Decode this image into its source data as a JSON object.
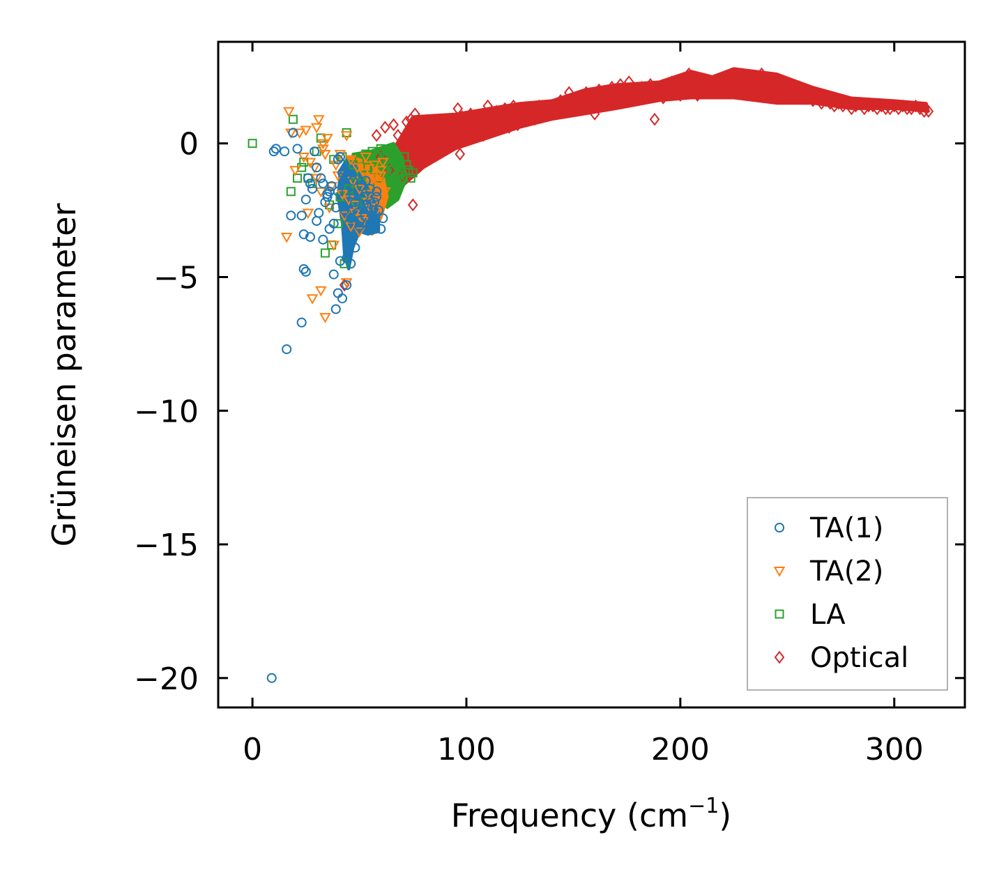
{
  "chart_data": {
    "type": "scatter",
    "title": "",
    "xlabel": "Frequency (cm",
    "xlabel_sup": "−1",
    "xlabel_close": ")",
    "ylabel": "Grüneisen parameter",
    "xlim": [
      -16,
      333
    ],
    "ylim": [
      -21.1,
      3.8
    ],
    "xticks": [
      0,
      100,
      200,
      300
    ],
    "xtick_labels": [
      "0",
      "100",
      "200",
      "300"
    ],
    "yticks": [
      0,
      -5,
      -10,
      -15,
      -20
    ],
    "ytick_labels": [
      "0",
      "−5",
      "−10",
      "−15",
      "−20"
    ],
    "grid": false,
    "legend_position": "bottom-right",
    "series": [
      {
        "name": "TA(1)",
        "marker": "circle",
        "color": "#1f77b4",
        "x": [
          9,
          10,
          11,
          16,
          18,
          19,
          21,
          23,
          24,
          25,
          26,
          27,
          28,
          29,
          30,
          31,
          32,
          33,
          34,
          35,
          36,
          37,
          38,
          39,
          40,
          41,
          42,
          43,
          44,
          45,
          46,
          47,
          48,
          49,
          50,
          51,
          52,
          53,
          54,
          55,
          56,
          57,
          58,
          59,
          60,
          24,
          25,
          27,
          30,
          33,
          36,
          38,
          40,
          43,
          45,
          47,
          50,
          52,
          55,
          58,
          61,
          40,
          42,
          44,
          46,
          48,
          15,
          23,
          39,
          35,
          41
        ],
        "y": [
          -20,
          -0.3,
          -0.2,
          -7.7,
          -2.7,
          0.4,
          -0.2,
          -2.7,
          -3.4,
          -2.1,
          -1.3,
          -1.5,
          -1.7,
          -0.3,
          -2.9,
          -2.6,
          -1.3,
          -1.5,
          -2.2,
          -1.9,
          -3.2,
          -1.6,
          -3.0,
          -2.4,
          -1.8,
          -0.5,
          -1.1,
          -2.5,
          -4.3,
          -3.5,
          -2.8,
          -1.9,
          -2.2,
          -2.6,
          -3.1,
          -1.6,
          -2.0,
          -1.4,
          -2.4,
          -3.0,
          -2.7,
          -2.2,
          -1.8,
          -2.5,
          -3.2,
          -4.7,
          -4.8,
          -3.5,
          -0.9,
          -3.6,
          -1.8,
          -4.9,
          -0.6,
          -1.0,
          -4.0,
          -1.4,
          -2.9,
          -2.3,
          -1.7,
          -2.0,
          -2.8,
          -5.6,
          -5.8,
          -5.3,
          -4.5,
          -3.9,
          -0.3,
          -6.7,
          -6.2,
          -2.0,
          -4.4
        ]
      },
      {
        "name": "TA(2)",
        "marker": "triangle-down",
        "color": "#ff7f0e",
        "x": [
          17,
          18,
          20,
          22,
          24,
          25,
          26,
          28,
          29,
          30,
          31,
          32,
          33,
          34,
          35,
          36,
          37,
          38,
          39,
          40,
          41,
          42,
          43,
          44,
          45,
          46,
          47,
          48,
          49,
          50,
          51,
          52,
          53,
          54,
          55,
          56,
          57,
          58,
          59,
          60,
          61,
          62,
          16,
          27,
          30,
          32,
          33,
          34,
          44,
          46,
          48,
          50,
          52,
          54,
          56,
          58,
          60
        ],
        "y": [
          1.2,
          0.4,
          -1.0,
          0.4,
          -0.5,
          0.5,
          -2.6,
          -5.8,
          -0.9,
          -1.3,
          0.9,
          -5.5,
          0.0,
          -6.5,
          0.2,
          -2.4,
          -1.6,
          -3.8,
          -0.8,
          -1.2,
          -0.4,
          -1.9,
          -2.7,
          0.3,
          -2.1,
          -0.6,
          -1.4,
          -2.3,
          -0.9,
          -1.7,
          -2.8,
          -1.1,
          -0.5,
          -1.9,
          -2.4,
          -1.3,
          -0.8,
          -2.0,
          -1.5,
          -1.0,
          -0.7,
          -1.8,
          -3.5,
          -0.7,
          0.6,
          -1.8,
          -0.2,
          -0.4,
          -5.2,
          -3.1,
          -2.6,
          -3.3,
          -2.9,
          -2.2,
          -1.6,
          -2.5,
          -1.2
        ]
      },
      {
        "name": "LA",
        "marker": "square",
        "color": "#2ca02c",
        "x": [
          0,
          18,
          19,
          21,
          23,
          24,
          26,
          28,
          30,
          32,
          34,
          36,
          37,
          38,
          40,
          41,
          42,
          43,
          44,
          45,
          46,
          47,
          48,
          49,
          50,
          51,
          52,
          53,
          54,
          55,
          56,
          57,
          58,
          59,
          60,
          61,
          62,
          63,
          64,
          65,
          66,
          67,
          68,
          69,
          70,
          71,
          72,
          73,
          74,
          75
        ],
        "y": [
          0,
          -1.8,
          0.9,
          -1.3,
          -0.9,
          -0.7,
          -1.3,
          -1.5,
          -0.3,
          0.2,
          -4.1,
          -2.3,
          -3.8,
          -0.6,
          -3.0,
          -2.0,
          -0.5,
          -4.5,
          0.4,
          -1.7,
          -2.8,
          -0.8,
          -1.5,
          -2.2,
          -0.6,
          -1.2,
          -1.9,
          -0.4,
          -0.9,
          -1.6,
          -0.3,
          -1.0,
          -0.5,
          -1.3,
          -0.2,
          -0.8,
          -1.1,
          -0.4,
          -0.7,
          -1.0,
          -0.3,
          -1.4,
          -0.6,
          -0.9,
          -1.2,
          -0.5,
          -0.8,
          -1.0,
          -1.3,
          -1.1
        ]
      },
      {
        "name": "Optical",
        "marker": "diamond",
        "color": "#d62728",
        "x": [
          43,
          58,
          60,
          62,
          64,
          66,
          68,
          70,
          72,
          74,
          75,
          76,
          78,
          80,
          82,
          84,
          86,
          88,
          90,
          92,
          94,
          96,
          97,
          98,
          100,
          102,
          104,
          106,
          108,
          110,
          112,
          114,
          116,
          118,
          120,
          122,
          124,
          126,
          128,
          130,
          132,
          134,
          136,
          138,
          140,
          142,
          144,
          146,
          148,
          150,
          152,
          154,
          156,
          158,
          160,
          162,
          164,
          166,
          168,
          170,
          172,
          174,
          176,
          178,
          180,
          182,
          184,
          186,
          188,
          190,
          192,
          194,
          196,
          198,
          200,
          202,
          204,
          206,
          208,
          210,
          212,
          214,
          216,
          218,
          220,
          222,
          224,
          226,
          228,
          230,
          232,
          234,
          236,
          238,
          240,
          242,
          244,
          246,
          248,
          250,
          252,
          254,
          256,
          258,
          260,
          262,
          264,
          266,
          268,
          270,
          272,
          274,
          276,
          278,
          280,
          282,
          284,
          286,
          288,
          290,
          292,
          294,
          296,
          298,
          300,
          302,
          304,
          306,
          308,
          310,
          312,
          314,
          316
        ],
        "y": [
          -5.3,
          0.3,
          -0.5,
          0.6,
          -1.0,
          0.7,
          0.3,
          -1.2,
          0.8,
          0.9,
          -2.3,
          1.1,
          -0.6,
          0.4,
          -0.3,
          0.6,
          -0.1,
          0.7,
          0.2,
          0.9,
          0.1,
          1.3,
          -0.4,
          1.0,
          0.5,
          1.1,
          0.6,
          0.9,
          0.3,
          1.4,
          0.7,
          1.2,
          0.8,
          1.3,
          0.6,
          1.4,
          0.7,
          1.2,
          1.0,
          1.1,
          0.9,
          1.4,
          1.1,
          1.2,
          1.4,
          1.3,
          1.6,
          1.2,
          1.9,
          1.5,
          1.7,
          1.3,
          1.9,
          1.6,
          1.1,
          2.0,
          1.7,
          1.8,
          2.1,
          1.8,
          2.2,
          1.9,
          2.3,
          2.0,
          1.8,
          2.1,
          1.9,
          2.2,
          0.9,
          2.0,
          1.7,
          2.1,
          2.3,
          2.0,
          1.8,
          2.4,
          2.6,
          2.1,
          1.8,
          2.2,
          1.9,
          2.3,
          2.1,
          2.4,
          2.2,
          2.5,
          2.6,
          2.3,
          2.1,
          2.4,
          2.2,
          2.5,
          2.3,
          2.6,
          2.4,
          2.1,
          2.3,
          2.0,
          2.2,
          1.9,
          2.1,
          1.8,
          1.9,
          1.7,
          1.8,
          1.6,
          1.7,
          1.5,
          1.6,
          1.5,
          1.4,
          1.5,
          1.4,
          1.5,
          1.3,
          1.4,
          1.5,
          1.3,
          1.4,
          1.4,
          1.3,
          1.4,
          1.3,
          1.3,
          1.4,
          1.3,
          1.4,
          1.3,
          1.3,
          1.4,
          1.3,
          1.2,
          1.2
        ]
      }
    ]
  }
}
